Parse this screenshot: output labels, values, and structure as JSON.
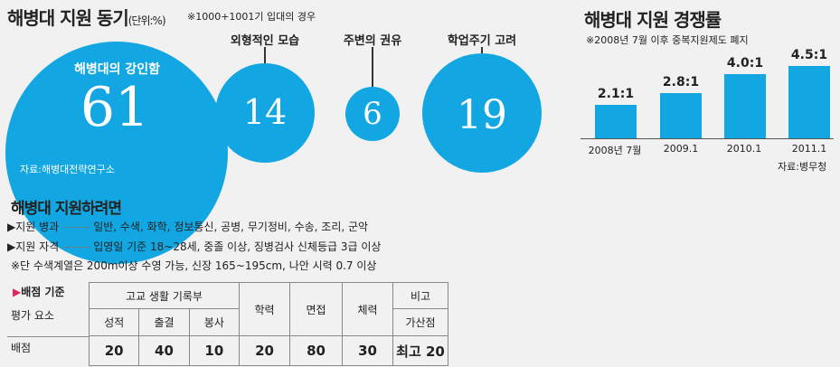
{
  "motive": {
    "title": "해병대 지원 동기",
    "unit": "(단위:%)",
    "note": "※1000+1001기 입대의 경우",
    "source": "자료:해병대전략연구소"
  },
  "rate": {
    "title": "해병대 지원 경쟁률",
    "note": "※2008년 7월 이후 중복지원제도 폐지",
    "source": "자료:병무청"
  },
  "requirements": {
    "title": "해병대 지원하려면",
    "lines": [
      {
        "label": "▶지원 병과",
        "dots": "-------",
        "text": "일반, 수색, 화학, 정보통신, 공병, 무기정비, 수송, 조리, 군악"
      },
      {
        "label": "▶지원 자격",
        "dots": "-------",
        "text": "입영일 기준 18~28세, 중졸 이상, 징병검사 신체등급 3급 이상"
      }
    ],
    "footnote": "※단 수색계열은 200m이상 수영 가능, 신장 165~195cm, 나안 시력 0.7 이상"
  },
  "criteria": {
    "title_marker": "▶",
    "title": "배점 기준",
    "eval_label": "평가 요소",
    "group_label": "고교 생활 기록부",
    "sub_labels": [
      "성적",
      "출결",
      "봉사"
    ],
    "col_labels": [
      "학력",
      "면접",
      "체력"
    ],
    "extra_label": "비고",
    "extra_sub": "가산점",
    "row_label": "배점",
    "scores": [
      "20",
      "40",
      "10",
      "20",
      "80",
      "30"
    ],
    "extra_score": "최고 20"
  },
  "chart_data": [
    {
      "type": "bubble",
      "title": "해병대 지원 동기",
      "unit": "(단위:%)",
      "categories": [
        "해병대의 강인함",
        "외형적인 모습",
        "주변의 권유",
        "학업주기 고려"
      ],
      "values": [
        61,
        14,
        6,
        19
      ]
    },
    {
      "type": "bar",
      "title": "해병대 지원 경쟁률",
      "categories": [
        "2008년 7월",
        "2009.1",
        "2010.1",
        "2011.1"
      ],
      "values": [
        2.1,
        2.8,
        4.0,
        4.5
      ],
      "labels": [
        "2.1:1",
        "2.8:1",
        "4.0:1",
        "4.5:1"
      ],
      "xlabel": "",
      "ylabel": ""
    }
  ]
}
